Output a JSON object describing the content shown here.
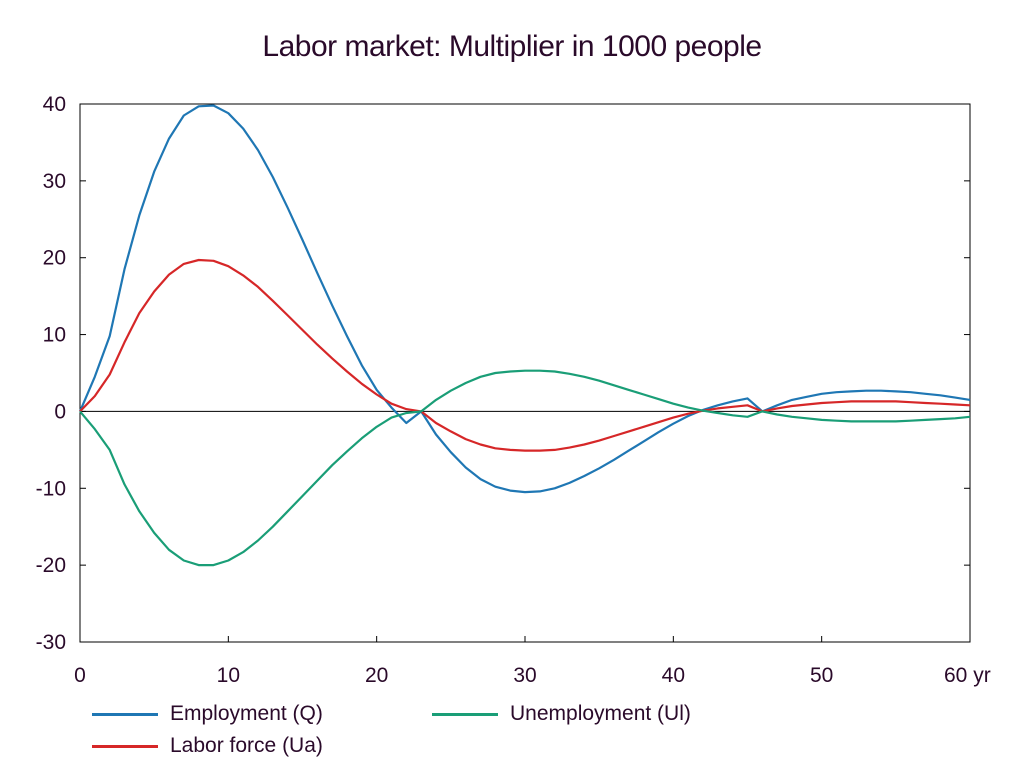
{
  "chart_data": {
    "type": "line",
    "title": "Labor market: Multiplier in 1000 people",
    "x_unit_label": "yr",
    "xlim": [
      0,
      60
    ],
    "ylim": [
      -30,
      40
    ],
    "x_ticks": [
      0,
      10,
      20,
      30,
      40,
      50,
      60
    ],
    "x_tick_labels": [
      "0",
      "10",
      "20",
      "30",
      "40",
      "50",
      "60 yr"
    ],
    "y_ticks": [
      40,
      30,
      20,
      10,
      0,
      -10,
      -20,
      -30
    ],
    "y_tick_labels": [
      "40",
      "30",
      "20",
      "10",
      "0",
      "-10",
      "-20",
      "-30"
    ],
    "zero_line": true,
    "grid": false,
    "legend_position": "bottom",
    "series": [
      {
        "name": "Employment (Q)",
        "color": "#1f77b4",
        "x": [
          0,
          1,
          2,
          3,
          4,
          5,
          6,
          7,
          8,
          9,
          10,
          11,
          12,
          13,
          14,
          15,
          16,
          17,
          18,
          19,
          20,
          21,
          22,
          23,
          24,
          25,
          26,
          27,
          28,
          29,
          30,
          31,
          32,
          33,
          34,
          35,
          36,
          37,
          38,
          39,
          40,
          41,
          42,
          43,
          44,
          45,
          46,
          47,
          48,
          49,
          50,
          51,
          52,
          53,
          54,
          55,
          56,
          57,
          58,
          59,
          60
        ],
        "values": [
          0,
          4.5,
          9.8,
          18.5,
          25.5,
          31.2,
          35.5,
          38.5,
          39.7,
          39.8,
          38.8,
          36.8,
          34.0,
          30.5,
          26.5,
          22.3,
          18.0,
          13.8,
          9.8,
          6.0,
          2.8,
          0.5,
          -1.5,
          0,
          -3.0,
          -5.3,
          -7.3,
          -8.8,
          -9.8,
          -10.3,
          -10.5,
          -10.4,
          -10.0,
          -9.3,
          -8.4,
          -7.4,
          -6.3,
          -5.1,
          -3.9,
          -2.7,
          -1.6,
          -0.6,
          0.2,
          0.8,
          1.3,
          1.7,
          0,
          0.8,
          1.5,
          1.9,
          2.3,
          2.5,
          2.6,
          2.7,
          2.7,
          2.6,
          2.5,
          2.3,
          2.1,
          1.8,
          1.5
        ]
      },
      {
        "name": "Labor force (Ua)",
        "color": "#d62728",
        "x": [
          0,
          1,
          2,
          3,
          4,
          5,
          6,
          7,
          8,
          9,
          10,
          11,
          12,
          13,
          14,
          15,
          16,
          17,
          18,
          19,
          20,
          21,
          22,
          23,
          24,
          25,
          26,
          27,
          28,
          29,
          30,
          31,
          32,
          33,
          34,
          35,
          36,
          37,
          38,
          39,
          40,
          41,
          42,
          43,
          44,
          45,
          46,
          47,
          48,
          49,
          50,
          51,
          52,
          53,
          54,
          55,
          56,
          57,
          58,
          59,
          60
        ],
        "values": [
          0,
          2.0,
          4.8,
          9.0,
          12.8,
          15.6,
          17.8,
          19.2,
          19.7,
          19.6,
          18.9,
          17.7,
          16.2,
          14.4,
          12.5,
          10.6,
          8.7,
          6.9,
          5.2,
          3.6,
          2.2,
          1.0,
          0.3,
          0,
          -1.5,
          -2.6,
          -3.6,
          -4.3,
          -4.8,
          -5.0,
          -5.1,
          -5.1,
          -5.0,
          -4.7,
          -4.3,
          -3.8,
          -3.2,
          -2.6,
          -2.0,
          -1.4,
          -0.8,
          -0.3,
          0.1,
          0.4,
          0.6,
          0.8,
          0,
          0.4,
          0.7,
          0.9,
          1.1,
          1.2,
          1.3,
          1.3,
          1.3,
          1.3,
          1.2,
          1.1,
          1.0,
          0.9,
          0.8
        ]
      },
      {
        "name": "Unemployment (Ul)",
        "color": "#1a9e77",
        "x": [
          0,
          1,
          2,
          3,
          4,
          5,
          6,
          7,
          8,
          9,
          10,
          11,
          12,
          13,
          14,
          15,
          16,
          17,
          18,
          19,
          20,
          21,
          22,
          23,
          24,
          25,
          26,
          27,
          28,
          29,
          30,
          31,
          32,
          33,
          34,
          35,
          36,
          37,
          38,
          39,
          40,
          41,
          42,
          43,
          44,
          45,
          46,
          47,
          48,
          49,
          50,
          51,
          52,
          53,
          54,
          55,
          56,
          57,
          58,
          59,
          60
        ],
        "values": [
          0,
          -2.3,
          -5.0,
          -9.5,
          -13.0,
          -15.8,
          -18.0,
          -19.4,
          -20.0,
          -20.0,
          -19.4,
          -18.3,
          -16.8,
          -15.0,
          -13.0,
          -11.0,
          -9.0,
          -7.0,
          -5.2,
          -3.5,
          -2.0,
          -0.8,
          -0.2,
          0,
          1.5,
          2.7,
          3.7,
          4.5,
          5.0,
          5.2,
          5.3,
          5.3,
          5.2,
          4.9,
          4.5,
          4.0,
          3.4,
          2.8,
          2.2,
          1.6,
          1.0,
          0.5,
          0.1,
          -0.2,
          -0.5,
          -0.7,
          0,
          -0.4,
          -0.7,
          -0.9,
          -1.1,
          -1.2,
          -1.3,
          -1.3,
          -1.3,
          -1.3,
          -1.2,
          -1.1,
          -1.0,
          -0.9,
          -0.7
        ]
      }
    ]
  }
}
